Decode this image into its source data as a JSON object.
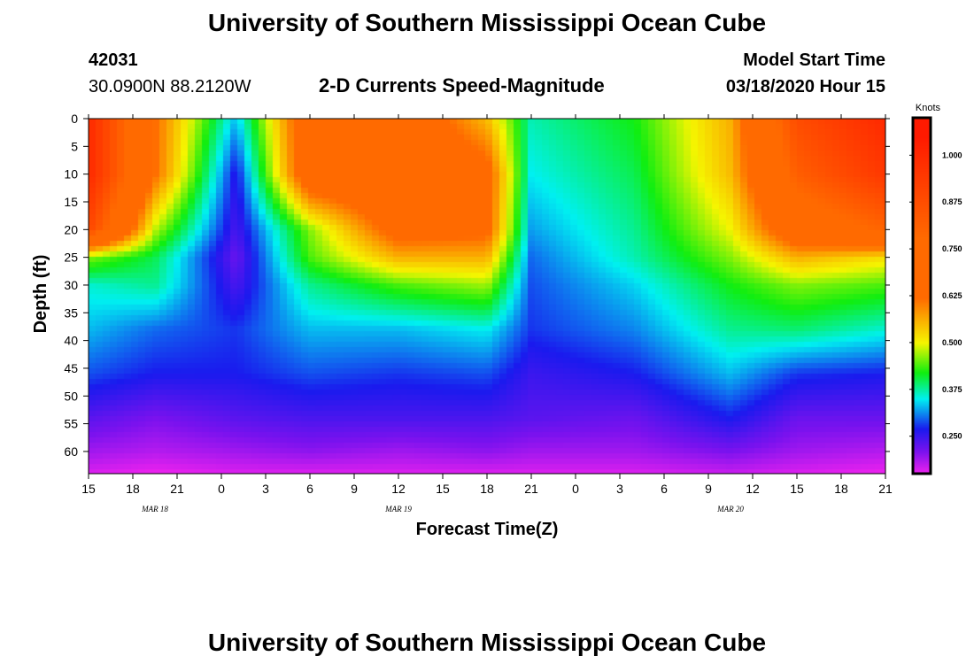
{
  "page": {
    "top_title": "University of Southern Mississippi Ocean Cube",
    "bottom_title": "University of Southern Mississippi Ocean Cube",
    "station_id": "42031",
    "station_coords": "30.0900N 88.2120W",
    "model_start_label": "Model Start Time",
    "model_start_value": "03/18/2020 Hour 15"
  },
  "chart_data": {
    "type": "heatmap",
    "title": "2-D Currents Speed-Magnitude",
    "xlabel": "Forecast Time(Z)",
    "ylabel": "Depth (ft)",
    "x_tick_labels": [
      "15",
      "18",
      "21",
      "0",
      "3",
      "6",
      "9",
      "12",
      "15",
      "18",
      "21",
      "0",
      "3",
      "6",
      "9",
      "12",
      "15",
      "18",
      "21"
    ],
    "x_range_hours_since_start": [
      0,
      54
    ],
    "date_labels": [
      {
        "text": "MAR  18",
        "hour": 4.5
      },
      {
        "text": "MAR  19",
        "hour": 21
      },
      {
        "text": "MAR  20",
        "hour": 43.5
      }
    ],
    "y_ticks": [
      0,
      5,
      10,
      15,
      20,
      25,
      30,
      35,
      40,
      45,
      50,
      55,
      60
    ],
    "ylim": [
      0,
      64
    ],
    "colorbar": {
      "title": "Knots",
      "min": 0.15,
      "max": 1.1,
      "tick_values": [
        0.25,
        0.375,
        0.5,
        0.625,
        0.75,
        0.875,
        1.0
      ],
      "tick_labels": [
        "0.250",
        "0.375",
        "0.500",
        "0.625",
        "0.750",
        "0.875",
        "1.000"
      ]
    },
    "colors": {
      "magenta": "#ee22ee",
      "violet": "#7a12ee",
      "blue": "#1a1aee",
      "cyan": "#00f0f0",
      "green": "#10ee10",
      "yellow": "#f5f500",
      "orange": "#ff6a00",
      "red": "#ff1a00"
    },
    "grid": {
      "hours": [
        0,
        4.5,
        10,
        15,
        21,
        27,
        30,
        37,
        43.5,
        48,
        54
      ],
      "depths": [
        0,
        10,
        20,
        25,
        30,
        38,
        46,
        54,
        60,
        64
      ],
      "values": [
        [
          1.0,
          0.62,
          0.33,
          0.7,
          0.7,
          0.55,
          0.37,
          0.42,
          0.56,
          0.88,
          1.0
        ],
        [
          1.0,
          0.62,
          0.26,
          0.7,
          0.72,
          0.65,
          0.35,
          0.4,
          0.55,
          0.82,
          0.95
        ],
        [
          0.9,
          0.48,
          0.24,
          0.46,
          0.66,
          0.64,
          0.32,
          0.38,
          0.5,
          0.7,
          0.8
        ],
        [
          0.46,
          0.4,
          0.22,
          0.44,
          0.56,
          0.56,
          0.3,
          0.37,
          0.46,
          0.56,
          0.52
        ],
        [
          0.36,
          0.38,
          0.24,
          0.38,
          0.44,
          0.47,
          0.29,
          0.34,
          0.42,
          0.46,
          0.44
        ],
        [
          0.33,
          0.3,
          0.28,
          0.33,
          0.33,
          0.35,
          0.28,
          0.31,
          0.38,
          0.39,
          0.36
        ],
        [
          0.29,
          0.27,
          0.27,
          0.29,
          0.28,
          0.29,
          0.25,
          0.27,
          0.33,
          0.28,
          0.27
        ],
        [
          0.23,
          0.21,
          0.23,
          0.24,
          0.24,
          0.24,
          0.23,
          0.22,
          0.27,
          0.22,
          0.22
        ],
        [
          0.19,
          0.18,
          0.19,
          0.2,
          0.19,
          0.2,
          0.19,
          0.19,
          0.21,
          0.19,
          0.18
        ],
        [
          0.16,
          0.15,
          0.16,
          0.16,
          0.16,
          0.16,
          0.16,
          0.16,
          0.17,
          0.16,
          0.15
        ]
      ]
    }
  }
}
